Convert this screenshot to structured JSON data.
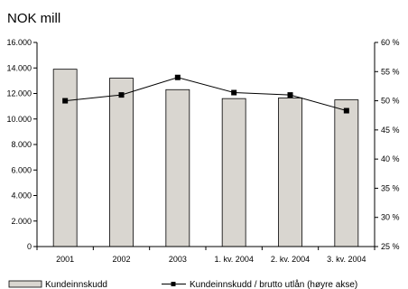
{
  "chart_data": {
    "type": "bar",
    "title": "NOK mill",
    "categories": [
      "2001",
      "2002",
      "2003",
      "1. kv. 2004",
      "2. kv. 2004",
      "3. kv. 2004"
    ],
    "series": [
      {
        "name": "Kundeinnskudd",
        "type": "bar",
        "axis": "left",
        "values": [
          13900,
          13200,
          12300,
          11600,
          11650,
          11500
        ],
        "color": "#d9d6d0"
      },
      {
        "name": "Kundeinnskudd / brutto utlån (høyre akse)",
        "type": "line",
        "axis": "right",
        "values": [
          50.0,
          51.0,
          54.0,
          51.4,
          51.0,
          48.3
        ],
        "color": "#000000"
      }
    ],
    "y_left": {
      "ylim": [
        0,
        16000
      ],
      "ticks": [
        0,
        2000,
        4000,
        6000,
        8000,
        10000,
        12000,
        14000,
        16000
      ],
      "tick_labels": [
        "0",
        "2.000",
        "4.000",
        "6.000",
        "8.000",
        "10.000",
        "12.000",
        "14.000",
        "16.000"
      ]
    },
    "y_right": {
      "ylim": [
        25,
        60
      ],
      "ticks": [
        25,
        30,
        35,
        40,
        45,
        50,
        55,
        60
      ],
      "tick_labels": [
        "25 %",
        "30 %",
        "35 %",
        "40 %",
        "45 %",
        "50 %",
        "55 %",
        "60 %"
      ]
    },
    "grid": false,
    "legend_position": "bottom"
  }
}
